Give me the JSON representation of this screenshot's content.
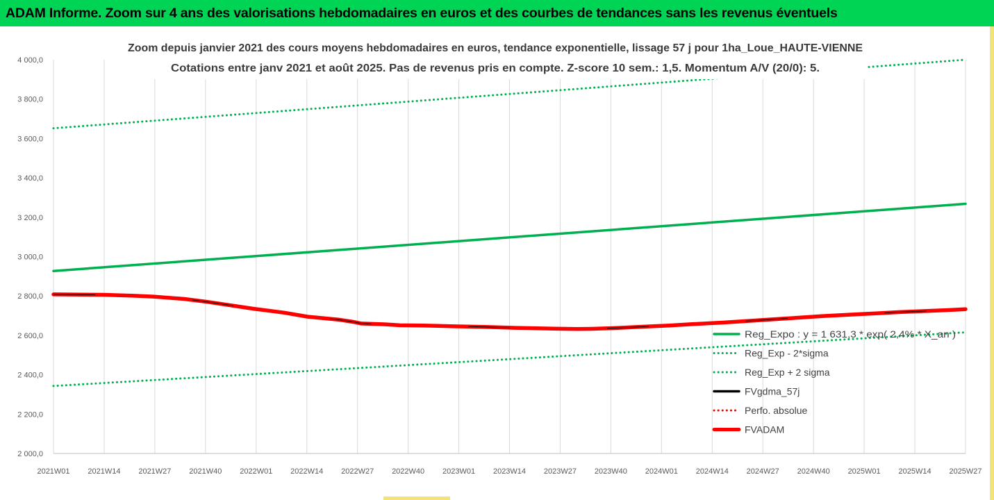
{
  "banner": {
    "title": "ADAM Informe. Zoom sur 4 ans des valorisations hebdomadaires en euros et des courbes de tendances sans les revenus éventuels",
    "color": "#00d455"
  },
  "chart_data": {
    "type": "line",
    "title": "Zoom depuis janvier 2021 des cours moyens hebdomadaires en euros, tendance exponentielle, lissage 57 j pour 1ha_Loue_HAUTE-VIENNE",
    "subtitle": "Cotations entre janv 2021 et août 2025.  Pas de revenus pris en compte. Z-score 10 sem.: 1,5. Momentum A/V (20/0): 5.",
    "x_tick_labels": [
      "2021W01",
      "2021W14",
      "2021W27",
      "2021W40",
      "2022W01",
      "2022W14",
      "2022W27",
      "2022W40",
      "2023W01",
      "2023W14",
      "2023W27",
      "2023W40",
      "2024W01",
      "2024W14",
      "2024W27",
      "2024W40",
      "2025W01",
      "2025W14",
      "2025W27"
    ],
    "x_range_weeks": [
      0,
      237
    ],
    "ylim": [
      2000,
      4000
    ],
    "y_ticks": [
      "2 000,0",
      "2 200,0",
      "2 400,0",
      "2 600,0",
      "2 800,0",
      "3 000,0",
      "3 200,0",
      "3 400,0",
      "3 600,0",
      "3 800,0",
      "4 000,0"
    ],
    "grid": "vertical",
    "legend_position": "right-middle",
    "series": [
      {
        "name": "Reg_Expo : y = 1 631,3 * exp( 2,4% * X_an )",
        "style": "solid",
        "color": "#00b050",
        "x": [
          0,
          237
        ],
        "values": [
          2927,
          3268
        ]
      },
      {
        "name": "Reg_Exp - 2*sigma",
        "style": "dotted",
        "color": "#00b050",
        "x": [
          0,
          237
        ],
        "values": [
          2343,
          2615
        ]
      },
      {
        "name": "Reg_Exp + 2 sigma",
        "style": "dotted",
        "color": "#00b050",
        "x": [
          0,
          237
        ],
        "values": [
          3652,
          4000
        ]
      },
      {
        "name": "FVgdma_57j",
        "style": "solid",
        "color": "#000000",
        "x": [
          0,
          13,
          21,
          26,
          34,
          40,
          52,
          60,
          66,
          74,
          78,
          80,
          86,
          90,
          96,
          104,
          112,
          120,
          130,
          136,
          140,
          146,
          152,
          160,
          166,
          174,
          182,
          190,
          200,
          210,
          220,
          232,
          237
        ],
        "values": [
          2808,
          2806,
          2801,
          2797,
          2785,
          2770,
          2735,
          2715,
          2695,
          2680,
          2668,
          2660,
          2656,
          2651,
          2650,
          2646,
          2643,
          2638,
          2634,
          2632,
          2633,
          2637,
          2643,
          2650,
          2657,
          2665,
          2675,
          2685,
          2698,
          2708,
          2718,
          2728,
          2733
        ]
      },
      {
        "name": "Perfo. absolue",
        "style": "dotted",
        "color": "#ff0000",
        "x": [],
        "values": []
      },
      {
        "name": "FVADAM",
        "style": "solid",
        "color": "#ff0000",
        "x": [
          0,
          13,
          21,
          26,
          34,
          40,
          52,
          60,
          66,
          74,
          78,
          80,
          86,
          90,
          96,
          104,
          112,
          120,
          130,
          136,
          140,
          146,
          152,
          160,
          166,
          174,
          182,
          190,
          200,
          210,
          220,
          232,
          237
        ],
        "values": [
          2808,
          2806,
          2801,
          2797,
          2785,
          2770,
          2735,
          2715,
          2695,
          2680,
          2668,
          2660,
          2656,
          2651,
          2650,
          2646,
          2643,
          2638,
          2634,
          2632,
          2633,
          2637,
          2643,
          2650,
          2657,
          2665,
          2675,
          2685,
          2698,
          2708,
          2718,
          2728,
          2733
        ]
      }
    ]
  }
}
